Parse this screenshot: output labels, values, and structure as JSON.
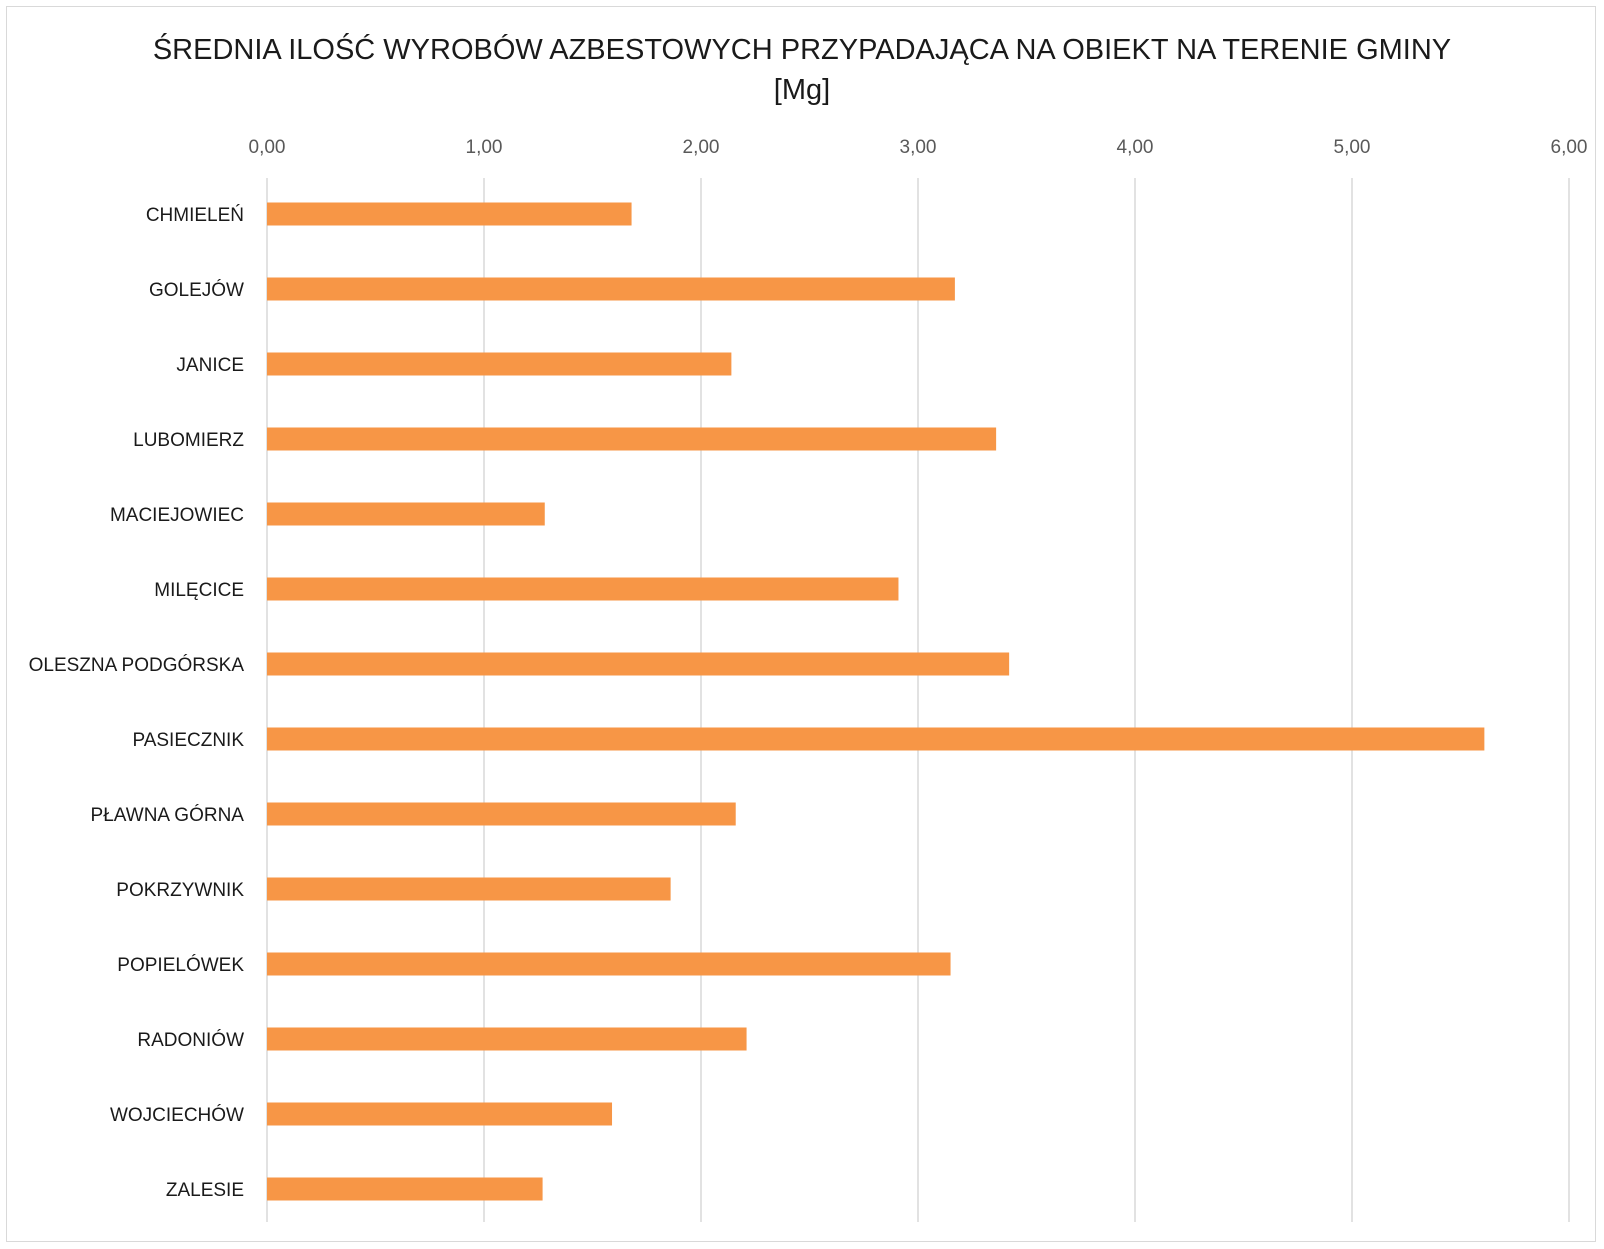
{
  "chart_data": {
    "type": "bar",
    "orientation": "horizontal",
    "title_line1": "ŚREDNIA ILOŚĆ WYROBÓW AZBESTOWYCH PRZYPADAJĄCA NA OBIEKT NA TERENIE GMINY",
    "title_line2": "[Mg]",
    "categories": [
      "CHMIELEŃ",
      "GOLEJÓW",
      "JANICE",
      "LUBOMIERZ",
      "MACIEJOWIEC",
      "MILĘCICE",
      "OLESZNA PODGÓRSKA",
      "PASIECZNIK",
      "PŁAWNA GÓRNA",
      "POKRZYWNIK",
      "POPIELÓWEK",
      "RADONIÓW",
      "WOJCIECHÓW",
      "ZALESIE"
    ],
    "values": [
      1.68,
      3.17,
      2.14,
      3.36,
      1.28,
      2.91,
      3.42,
      5.61,
      2.16,
      1.86,
      3.15,
      2.21,
      1.59,
      1.27
    ],
    "xlim": [
      0,
      6
    ],
    "x_ticks": [
      "0,00",
      "1,00",
      "2,00",
      "3,00",
      "4,00",
      "5,00",
      "6,00"
    ],
    "x_axis_position": "top",
    "grid": true,
    "bar_color": "#F79646",
    "gridline_color": "#D9D9D9"
  }
}
